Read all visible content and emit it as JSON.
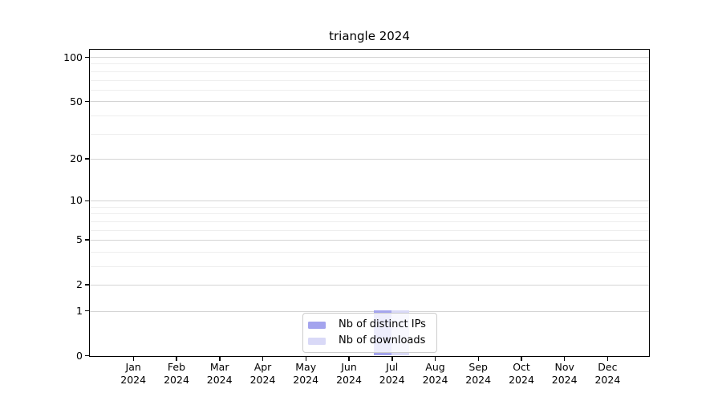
{
  "chart_data": {
    "type": "bar",
    "title": "triangle 2024",
    "categories": [
      "Jan 2024",
      "Feb 2024",
      "Mar 2024",
      "Apr 2024",
      "May 2024",
      "Jun 2024",
      "Jul 2024",
      "Aug 2024",
      "Sep 2024",
      "Oct 2024",
      "Nov 2024",
      "Dec 2024"
    ],
    "x_tick_line1": [
      "Jan",
      "Feb",
      "Mar",
      "Apr",
      "May",
      "Jun",
      "Jul",
      "Aug",
      "Sep",
      "Oct",
      "Nov",
      "Dec"
    ],
    "x_tick_line2": [
      "2024",
      "2024",
      "2024",
      "2024",
      "2024",
      "2024",
      "2024",
      "2024",
      "2024",
      "2024",
      "2024",
      "2024"
    ],
    "series": [
      {
        "name": "Nb of distinct IPs",
        "color": "#a4a4ee",
        "values": [
          0,
          0,
          0,
          0,
          0,
          0,
          1,
          0,
          0,
          0,
          0,
          0
        ]
      },
      {
        "name": "Nb of downloads",
        "color": "#d9d9f7",
        "values": [
          0,
          0,
          0,
          0,
          0,
          0,
          1,
          0,
          0,
          0,
          0,
          0
        ]
      }
    ],
    "y_axis": {
      "scale": "log1p",
      "ymin": 0,
      "ymax": 112,
      "major_ticks": [
        100,
        50,
        20,
        10,
        5,
        2,
        1,
        0
      ],
      "minor_gridlines": [
        90,
        80,
        70,
        60,
        40,
        30,
        9,
        8,
        7,
        6,
        4,
        3
      ]
    },
    "grid": "horizontal",
    "legend_position": "lower center",
    "colors": {
      "grid_major": "#d4d4d4",
      "grid_minor": "#eeeeee",
      "spine": "#000000",
      "background": "#ffffff"
    }
  }
}
